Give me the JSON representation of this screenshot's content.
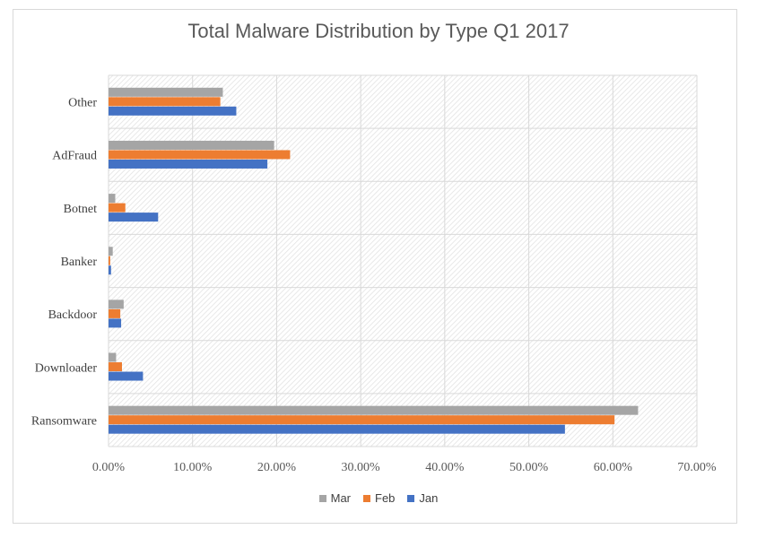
{
  "chart_data": {
    "type": "bar",
    "orientation": "horizontal",
    "title": "Total Malware Distribution by Type Q1 2017",
    "xlabel": "",
    "ylabel": "",
    "categories": [
      "Ransomware",
      "Downloader",
      "Backdoor",
      "Banker",
      "Botnet",
      "AdFraud",
      "Other"
    ],
    "series": [
      {
        "name": "Jan",
        "color": "#4472c4",
        "values": [
          54.3,
          4.1,
          1.5,
          0.3,
          5.9,
          18.9,
          15.2
        ]
      },
      {
        "name": "Feb",
        "color": "#ed7d31",
        "values": [
          60.2,
          1.6,
          1.4,
          0.2,
          2.0,
          21.6,
          13.3
        ]
      },
      {
        "name": "Mar",
        "color": "#a5a5a5",
        "values": [
          63.0,
          0.9,
          1.8,
          0.5,
          0.8,
          19.7,
          13.6
        ]
      }
    ],
    "xlim": [
      0,
      70
    ],
    "x_ticks": [
      "0.00%",
      "10.00%",
      "20.00%",
      "30.00%",
      "40.00%",
      "50.00%",
      "60.00%",
      "70.00%"
    ],
    "grid": true,
    "plot_background": "diagonal hatch",
    "legend_position": "bottom",
    "legend_order": [
      "Mar",
      "Feb",
      "Jan"
    ]
  }
}
